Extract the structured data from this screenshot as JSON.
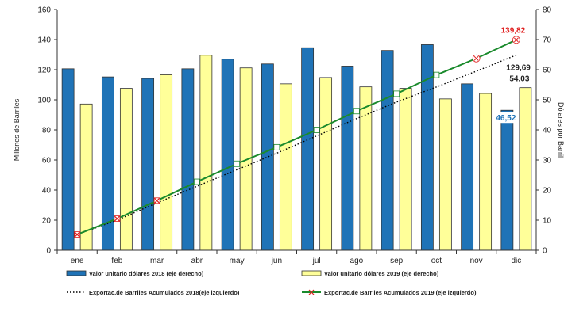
{
  "chart_data": {
    "type": "bar",
    "categories": [
      "ene",
      "feb",
      "mar",
      "abr",
      "may",
      "jun",
      "jul",
      "ago",
      "sep",
      "oct",
      "nov",
      "dic"
    ],
    "y_left": {
      "label": "Millones de Barriles",
      "ylim": [
        0,
        160
      ],
      "ticks": [
        "0",
        "20",
        "40",
        "60",
        "80",
        "100",
        "120",
        "140",
        "160"
      ]
    },
    "y_right": {
      "label": "Dólares por Barril",
      "ylim": [
        0,
        80
      ],
      "ticks": [
        "0",
        "10",
        "20",
        "30",
        "40",
        "50",
        "60",
        "70",
        "80"
      ]
    },
    "grid": false,
    "series": [
      {
        "name": "Valor unitario dólares 2018 (eje derecho)",
        "type": "bar",
        "axis": "right",
        "color": "#1f73b7",
        "values": [
          60.3,
          57.6,
          57.1,
          60.3,
          63.5,
          61.9,
          67.3,
          61.2,
          66.4,
          68.3,
          55.3,
          46.52
        ]
      },
      {
        "name": "Valor unitario dólares 2019 (eje derecho)",
        "type": "bar",
        "axis": "right",
        "color": "#ffff99",
        "values": [
          48.6,
          53.8,
          58.3,
          64.8,
          60.6,
          55.3,
          57.4,
          54.3,
          53.8,
          50.3,
          52.1,
          54.03
        ]
      },
      {
        "name": "Exportac.de Barriles Acumulados 2018(eje izquierdo)",
        "type": "line",
        "axis": "left",
        "style": "dotted",
        "color": "#000000",
        "values": [
          10.5,
          20.0,
          31.5,
          42.5,
          53.5,
          64.5,
          76.0,
          87.5,
          98.5,
          108.5,
          119.0,
          129.69
        ]
      },
      {
        "name": "Exportac.de Barriles Acumulados 2019 (eje izquierdo)",
        "type": "line",
        "axis": "left",
        "style": "solid",
        "color": "#1a8a2c",
        "values": [
          10.5,
          21.0,
          33.0,
          45.5,
          57.5,
          68.5,
          80.0,
          92.5,
          104.0,
          116.5,
          127.5,
          139.82
        ]
      }
    ],
    "annotations": [
      {
        "text": "139,82",
        "color": "#e02020"
      },
      {
        "text": "129,69",
        "color": "#222222"
      },
      {
        "text": "54,03",
        "color": "#222222"
      },
      {
        "text": "46,52",
        "color": "#1f73b7"
      }
    ],
    "legend_position": "bottom"
  }
}
